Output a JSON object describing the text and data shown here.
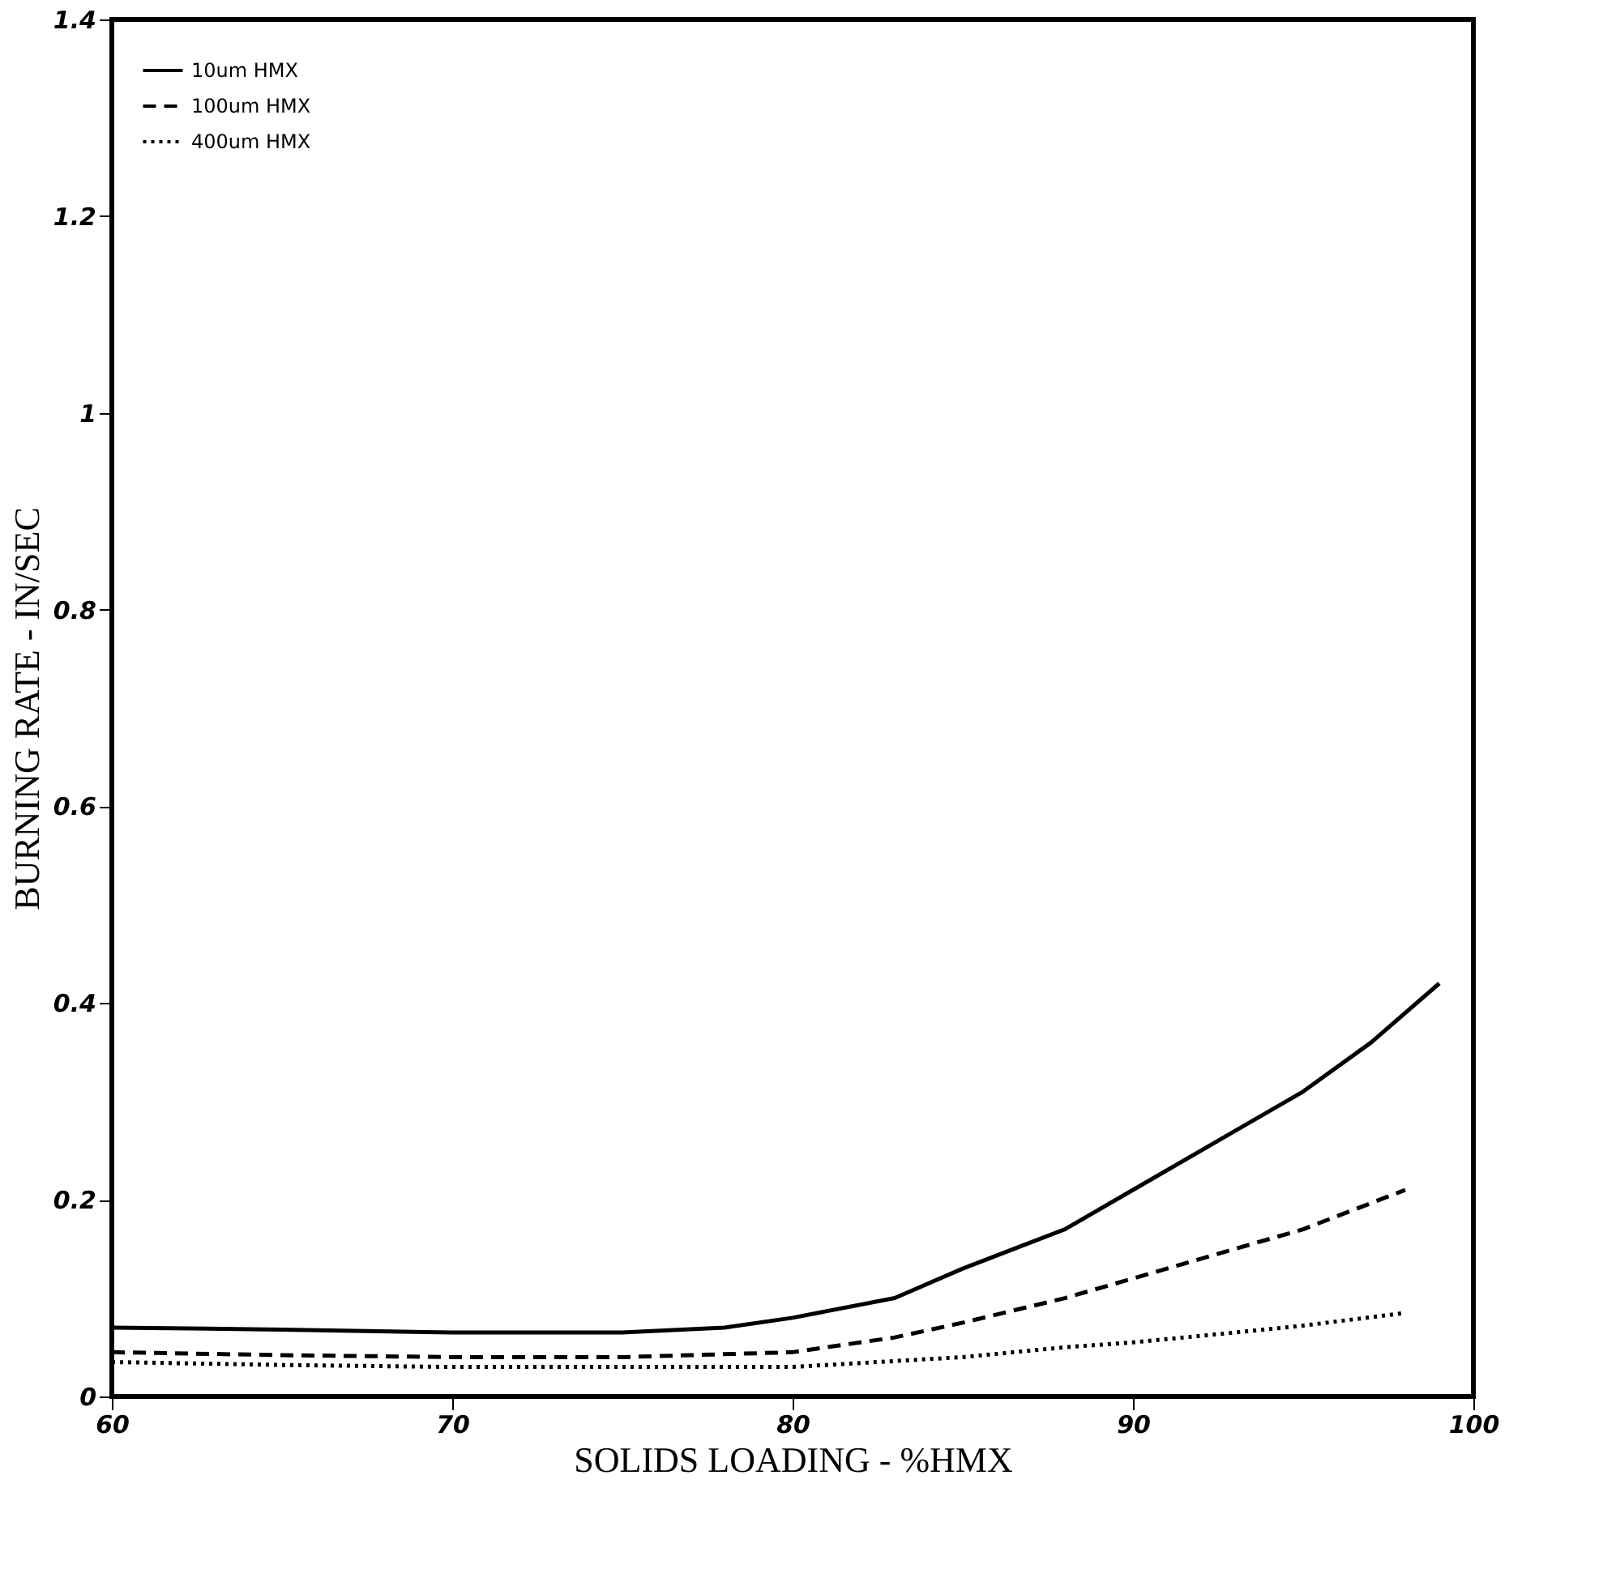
{
  "chart_data": {
    "type": "line",
    "xlabel": "SOLIDS LOADING - %HMX",
    "ylabel": "BURNING RATE - IN/SEC",
    "xlim": [
      60,
      100
    ],
    "xticks": [
      60,
      70,
      80,
      90,
      100
    ],
    "ylim": [
      0,
      1.4
    ],
    "yticks": [
      0,
      0.2,
      0.4,
      0.6,
      0.8,
      1,
      1.2,
      1.4
    ],
    "grid": false,
    "legend": "top left",
    "marker": "none",
    "series": [
      {
        "name": "10um HMX",
        "color": "#000000",
        "line_style": "solid",
        "x": [
          60,
          65,
          70,
          75,
          78,
          80,
          83,
          85,
          88,
          90,
          93,
          95,
          97,
          99
        ],
        "values": [
          0.07,
          0.068,
          0.065,
          0.065,
          0.07,
          0.08,
          0.1,
          0.13,
          0.17,
          0.21,
          0.27,
          0.31,
          0.36,
          0.42
        ]
      },
      {
        "name": "100um HMX",
        "color": "#000000",
        "line_style": "dashed",
        "x": [
          60,
          65,
          70,
          75,
          80,
          83,
          85,
          88,
          90,
          93,
          95,
          98
        ],
        "values": [
          0.045,
          0.042,
          0.04,
          0.04,
          0.045,
          0.06,
          0.075,
          0.1,
          0.12,
          0.15,
          0.17,
          0.21
        ]
      },
      {
        "name": "400um HMX",
        "color": "#000000",
        "line_style": "dotted",
        "x": [
          60,
          65,
          70,
          75,
          80,
          85,
          88,
          90,
          93,
          95,
          98
        ],
        "values": [
          0.035,
          0.032,
          0.03,
          0.03,
          0.03,
          0.04,
          0.05,
          0.055,
          0.065,
          0.072,
          0.085
        ]
      }
    ]
  }
}
